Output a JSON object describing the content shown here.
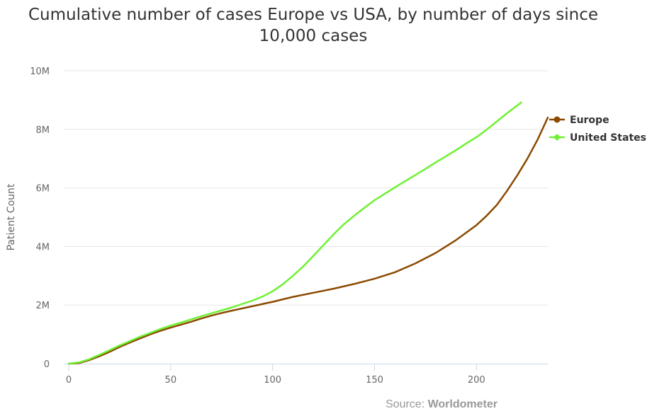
{
  "chart_data": {
    "type": "line",
    "title_line1": "Cumulative number of cases Europe vs USA, by number of days since",
    "title_line2": "10,000 cases",
    "ylabel": "Patient Count",
    "xlim": [
      0,
      235
    ],
    "ylim": [
      0,
      10000000
    ],
    "x_ticks": [
      0,
      50,
      100,
      150,
      200
    ],
    "y_ticks": [
      0,
      2000000,
      4000000,
      6000000,
      8000000,
      10000000
    ],
    "y_tick_labels": [
      "0",
      "2M",
      "4M",
      "6M",
      "8M",
      "10M"
    ],
    "grid": true,
    "legend_placement": "right",
    "series": [
      {
        "name": "Europe",
        "color": "#8b4a00",
        "x": [
          0,
          5,
          10,
          15,
          20,
          25,
          30,
          35,
          40,
          45,
          50,
          55,
          60,
          65,
          70,
          75,
          80,
          90,
          100,
          110,
          120,
          130,
          140,
          150,
          160,
          170,
          180,
          190,
          200,
          205,
          210,
          215,
          220,
          225,
          230,
          235
        ],
        "y": [
          0,
          20000,
          120000,
          250000,
          400000,
          570000,
          720000,
          860000,
          1000000,
          1120000,
          1230000,
          1330000,
          1430000,
          1540000,
          1640000,
          1730000,
          1810000,
          1960000,
          2110000,
          2280000,
          2420000,
          2560000,
          2720000,
          2900000,
          3120000,
          3420000,
          3780000,
          4220000,
          4730000,
          5050000,
          5420000,
          5900000,
          6430000,
          7000000,
          7650000,
          8400000
        ]
      },
      {
        "name": "United States",
        "color": "#6ef132",
        "x": [
          0,
          5,
          10,
          15,
          20,
          25,
          30,
          35,
          40,
          45,
          50,
          55,
          60,
          65,
          70,
          75,
          80,
          90,
          95,
          100,
          105,
          110,
          115,
          120,
          125,
          130,
          135,
          140,
          145,
          150,
          155,
          160,
          165,
          170,
          175,
          180,
          185,
          190,
          195,
          200,
          205,
          210,
          215,
          222
        ],
        "y": [
          0,
          40000,
          150000,
          300000,
          460000,
          620000,
          770000,
          920000,
          1050000,
          1180000,
          1300000,
          1400000,
          1510000,
          1620000,
          1720000,
          1820000,
          1920000,
          2150000,
          2290000,
          2470000,
          2710000,
          3000000,
          3320000,
          3680000,
          4050000,
          4420000,
          4760000,
          5050000,
          5320000,
          5580000,
          5800000,
          6020000,
          6230000,
          6440000,
          6650000,
          6870000,
          7080000,
          7290000,
          7520000,
          7730000,
          7990000,
          8270000,
          8550000,
          8920000
        ]
      }
    ]
  },
  "footer": {
    "source_label": "Source: ",
    "source_name": "Worldometer"
  }
}
